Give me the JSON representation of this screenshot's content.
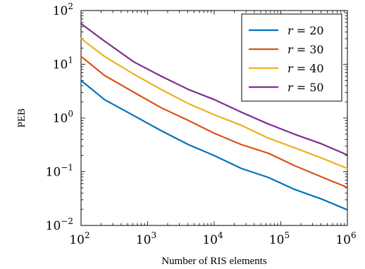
{
  "chart_data": {
    "type": "line",
    "xlabel": "Number of RIS elements",
    "ylabel": "PEB",
    "x_scale": "log",
    "y_scale": "log",
    "xlim": [
      100,
      1000000
    ],
    "ylim": [
      0.01,
      100
    ],
    "x_ticks": [
      {
        "base": "10",
        "exp": "2",
        "value": 100
      },
      {
        "base": "10",
        "exp": "3",
        "value": 1000
      },
      {
        "base": "10",
        "exp": "4",
        "value": 10000
      },
      {
        "base": "10",
        "exp": "5",
        "value": 100000
      },
      {
        "base": "10",
        "exp": "6",
        "value": 1000000
      }
    ],
    "y_ticks": [
      {
        "base": "10",
        "exp": "−2",
        "value": 0.01
      },
      {
        "base": "10",
        "exp": "−1",
        "value": 0.1
      },
      {
        "base": "10",
        "exp": "0",
        "value": 1
      },
      {
        "base": "10",
        "exp": "1",
        "value": 10
      },
      {
        "base": "10",
        "exp": "2",
        "value": 100
      }
    ],
    "grid": false,
    "legend_position": "top-right",
    "x": [
      100,
      225,
      625,
      1600,
      4096,
      10000,
      25600,
      65536,
      160000,
      409600,
      1000000
    ],
    "series": [
      {
        "name": "r = 20",
        "color": "#0072bd",
        "values": [
          5.0,
          2.2,
          1.1,
          0.58,
          0.32,
          0.2,
          0.115,
          0.078,
          0.047,
          0.031,
          0.0195
        ]
      },
      {
        "name": "r = 30",
        "color": "#d95319",
        "values": [
          14.0,
          6.2,
          3.0,
          1.55,
          0.9,
          0.52,
          0.32,
          0.22,
          0.13,
          0.08,
          0.051
        ]
      },
      {
        "name": "r = 40",
        "color": "#edb120",
        "values": [
          30.0,
          14.0,
          6.5,
          3.4,
          1.85,
          1.15,
          0.73,
          0.42,
          0.28,
          0.18,
          0.115
        ]
      },
      {
        "name": "r = 50",
        "color": "#7e2f8e",
        "values": [
          57.0,
          27.0,
          11.0,
          6.0,
          3.4,
          2.2,
          1.28,
          0.77,
          0.5,
          0.33,
          0.205
        ]
      }
    ],
    "legend_entries": [
      {
        "var": "r",
        "eq": " = 20"
      },
      {
        "var": "r",
        "eq": " = 30"
      },
      {
        "var": "r",
        "eq": " = 40"
      },
      {
        "var": "r",
        "eq": " = 50"
      }
    ]
  }
}
